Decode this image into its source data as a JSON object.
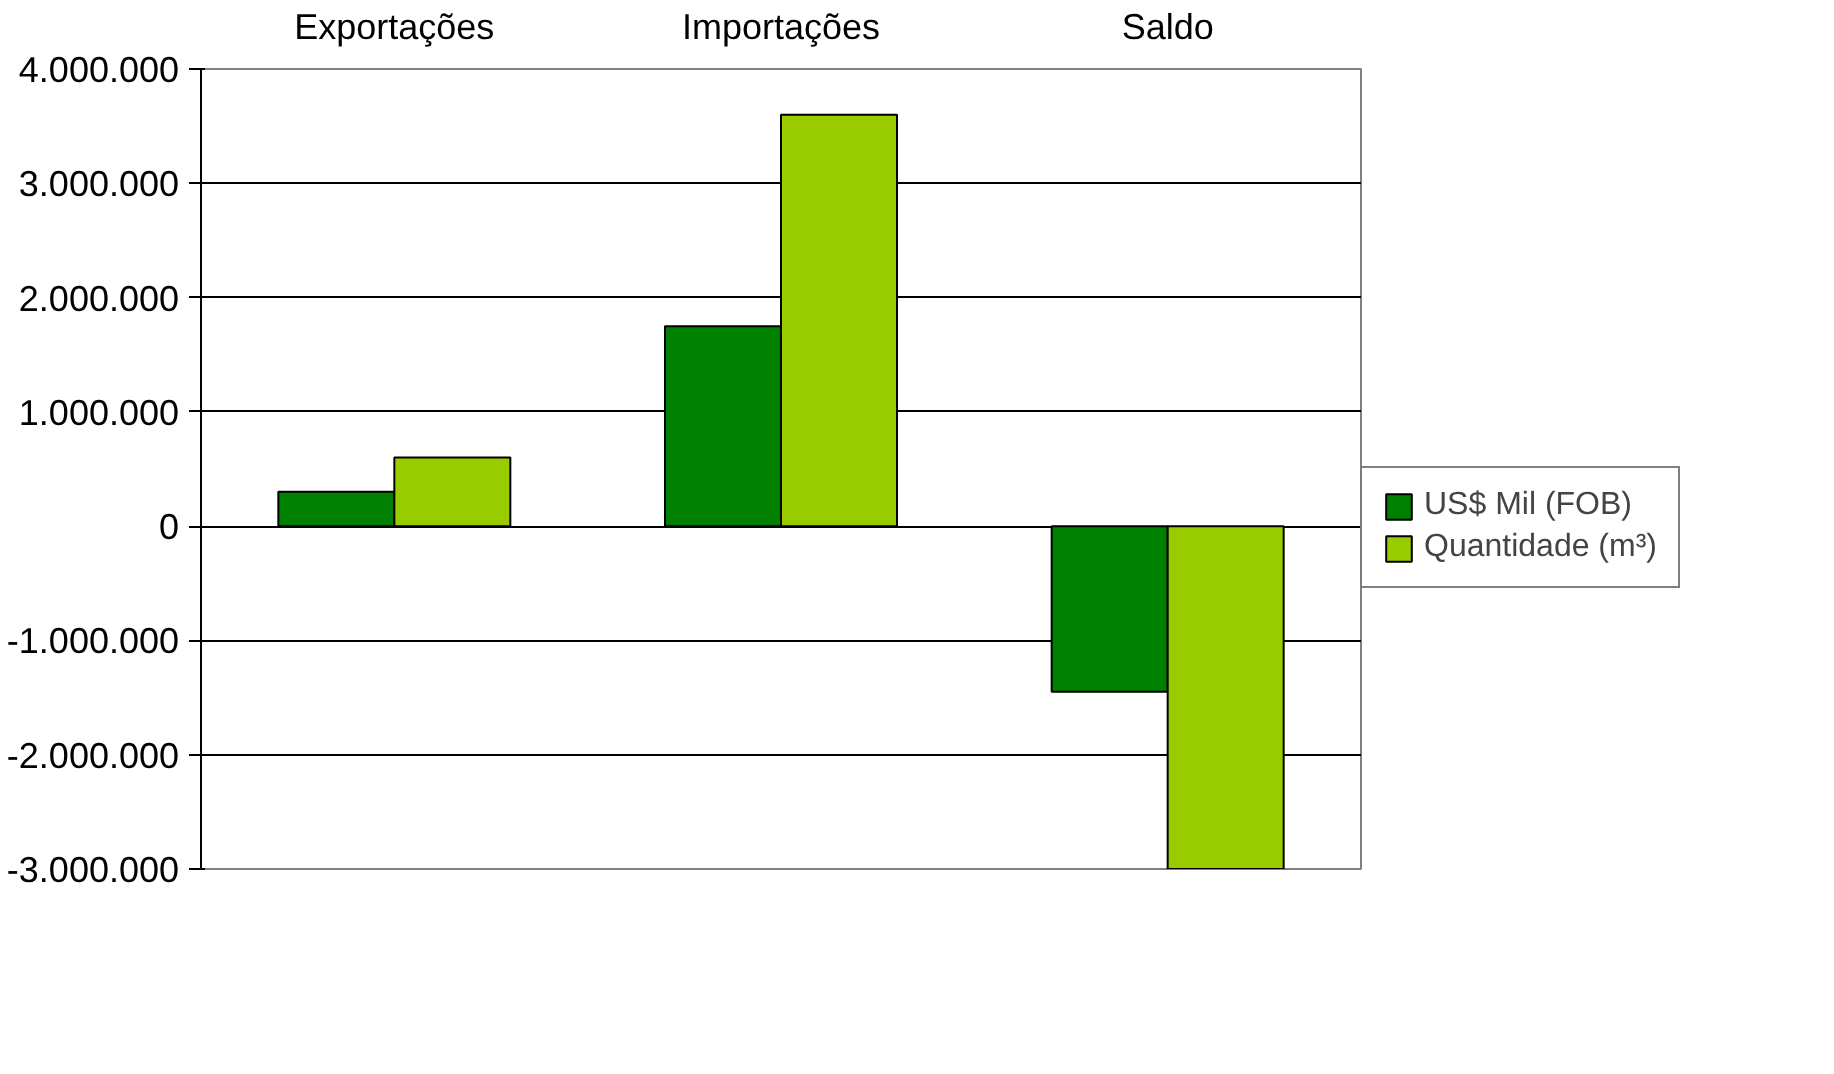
{
  "chart_data": {
    "type": "bar",
    "categories": [
      "Exportações",
      "Importações",
      "Saldo"
    ],
    "series": [
      {
        "name": "US$ Mil (FOB)",
        "color": "#008000",
        "values": [
          300000,
          1750000,
          -1450000
        ]
      },
      {
        "name": "Quantidade (m³)",
        "color": "#99cc00",
        "values": [
          600000,
          3600000,
          -3000000
        ]
      }
    ],
    "ylim": [
      -3000000,
      4000000
    ],
    "yticks": [
      {
        "value": -3000000,
        "label": "-3.000.000"
      },
      {
        "value": -2000000,
        "label": "-2.000.000"
      },
      {
        "value": -1000000,
        "label": "-1.000.000"
      },
      0,
      {
        "value": 1000000,
        "label": "1.000.000"
      },
      {
        "value": 2000000,
        "label": "2.000.000"
      },
      {
        "value": 3000000,
        "label": "3.000.000"
      },
      {
        "value": 4000000,
        "label": "4.000.000"
      }
    ],
    "grid": "y",
    "legend": "right"
  }
}
